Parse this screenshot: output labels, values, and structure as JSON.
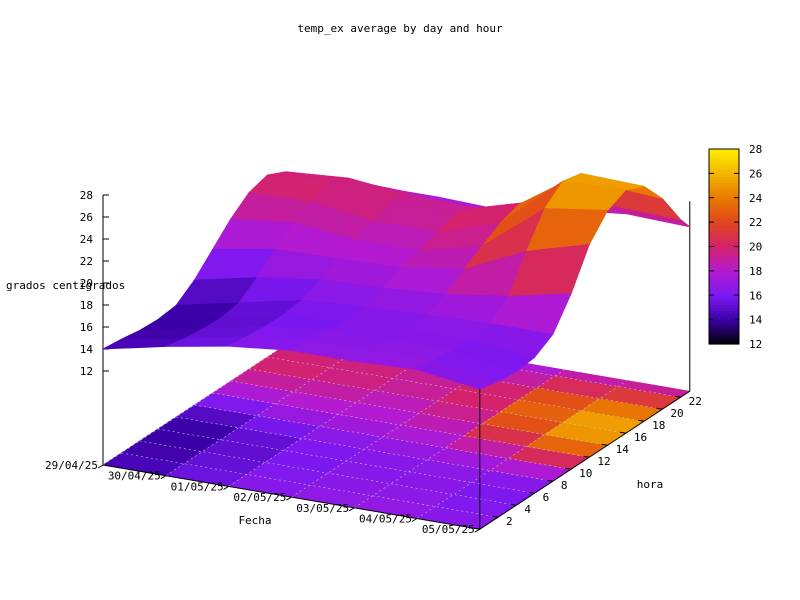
{
  "chart_data": {
    "type": "surface-3d-pm3d",
    "title": "temp_ex average by day and hour",
    "xlabel": "Fecha",
    "ylabel": "hora",
    "zlabel": "grados centigrados",
    "x_ticks": [
      "29/04/25",
      "30/04/25",
      "01/05/25",
      "02/05/25",
      "03/05/25",
      "04/05/25",
      "05/05/25"
    ],
    "y_ticks": [
      2,
      4,
      6,
      8,
      10,
      12,
      14,
      16,
      18,
      20,
      22
    ],
    "z_ticks": [
      12,
      14,
      16,
      18,
      20,
      22,
      24,
      26,
      28
    ],
    "zlim": [
      12,
      28
    ],
    "cb_ticks": [
      12,
      14,
      16,
      18,
      20,
      22,
      24,
      26,
      28
    ],
    "cblim": [
      12,
      28
    ],
    "colormap": [
      "#000000",
      "#3b00a6",
      "#7b18f0",
      "#b41ad0",
      "#d4226c",
      "#e0461e",
      "#ea7a00",
      "#f2b400",
      "#ffee00"
    ],
    "hours": [
      0,
      2,
      4,
      6,
      8,
      10,
      12,
      14,
      16,
      18,
      20,
      22,
      23
    ],
    "days": [
      "29/04/25",
      "30/04/25",
      "01/05/25",
      "02/05/25",
      "03/05/25",
      "04/05/25",
      "05/05/25"
    ],
    "z": [
      [
        14.0,
        13.8,
        13.5,
        13.4,
        13.6,
        14.8,
        16.5,
        18.2,
        19.5,
        20.0,
        19.2,
        16.8,
        16.0
      ],
      [
        15.2,
        14.8,
        14.6,
        14.5,
        14.8,
        16.0,
        17.5,
        18.8,
        19.6,
        20.4,
        19.6,
        18.0,
        17.2
      ],
      [
        16.2,
        16.0,
        15.8,
        15.8,
        16.0,
        16.8,
        17.6,
        18.2,
        18.8,
        19.6,
        19.0,
        17.8,
        17.2
      ],
      [
        16.8,
        16.6,
        16.4,
        16.2,
        16.4,
        17.0,
        17.8,
        18.2,
        18.8,
        19.4,
        18.8,
        17.6,
        17.0
      ],
      [
        16.8,
        16.6,
        16.5,
        16.4,
        16.6,
        17.4,
        18.6,
        19.6,
        20.6,
        21.2,
        20.4,
        18.8,
        18.0
      ],
      [
        17.0,
        16.8,
        16.6,
        16.4,
        16.8,
        18.2,
        21.2,
        24.0,
        25.4,
        25.0,
        23.0,
        19.8,
        18.6
      ],
      [
        16.2,
        15.8,
        15.6,
        15.8,
        16.8,
        19.4,
        22.8,
        24.8,
        25.6,
        24.8,
        22.6,
        19.6,
        18.4
      ]
    ]
  }
}
